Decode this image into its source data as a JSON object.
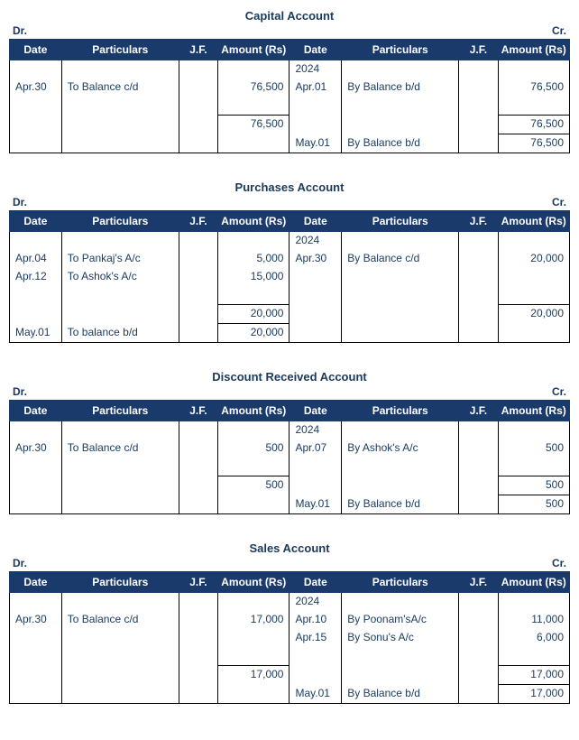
{
  "headers": {
    "date": "Date",
    "particulars": "Particulars",
    "jf": "J.F.",
    "amount": "Amount (Rs)",
    "dr": "Dr.",
    "cr": "Cr."
  },
  "accounts": {
    "capital": {
      "title": "Capital Account",
      "dr": {
        "rows": [
          {
            "date": "Apr.30",
            "part": "To Balance c/d",
            "amt": "76,500"
          }
        ],
        "subtotal": "76,500",
        "grand": ""
      },
      "cr": {
        "year": "2024",
        "rows": [
          {
            "date": "Apr.01",
            "part": "By Balance b/d",
            "amt": "76,500"
          }
        ],
        "subtotal": "76,500",
        "post": {
          "date": "May.01",
          "part": "By Balance b/d",
          "amt": "76,500"
        }
      }
    },
    "purchases": {
      "title": "Purchases Account",
      "dr": {
        "rows": [
          {
            "date": "Apr.04",
            "part": "To Pankaj's A/c",
            "amt": "5,000"
          },
          {
            "date": "Apr.12",
            "part": "To Ashok's A/c",
            "amt": "15,000"
          }
        ],
        "subtotal": "20,000",
        "grand": "20,000",
        "post": {
          "date": "May.01",
          "part": "To balance b/d"
        }
      },
      "cr": {
        "year": "2024",
        "rows": [
          {
            "date": "Apr.30",
            "part": "By Balance c/d",
            "amt": "20,000"
          }
        ],
        "subtotal": "20,000",
        "grand": ""
      }
    },
    "discount": {
      "title": "Discount Received Account",
      "dr": {
        "rows": [
          {
            "date": "Apr.30",
            "part": "To Balance c/d",
            "amt": "500"
          }
        ],
        "subtotal": "500",
        "grand": ""
      },
      "cr": {
        "year": "2024",
        "rows": [
          {
            "date": "Apr.07",
            "part": "By Ashok's A/c",
            "amt": "500"
          }
        ],
        "subtotal": "500",
        "post": {
          "date": "May.01",
          "part": "By Balance b/d",
          "amt": "500"
        }
      }
    },
    "sales": {
      "title": "Sales Account",
      "dr": {
        "rows": [
          {
            "date": "Apr.30",
            "part": "To Balance c/d",
            "amt": "17,000"
          }
        ],
        "subtotal": "17,000",
        "grand": ""
      },
      "cr": {
        "year": "2024",
        "rows": [
          {
            "date": "Apr.10",
            "part": "By Poonam'sA/c",
            "amt": "11,000"
          },
          {
            "date": "Apr.15",
            "part": "By Sonu's A/c",
            "amt": "6,000"
          }
        ],
        "subtotal": "17,000",
        "post": {
          "date": "May.01",
          "part": "By Balance b/d",
          "amt": "17,000"
        }
      }
    }
  }
}
